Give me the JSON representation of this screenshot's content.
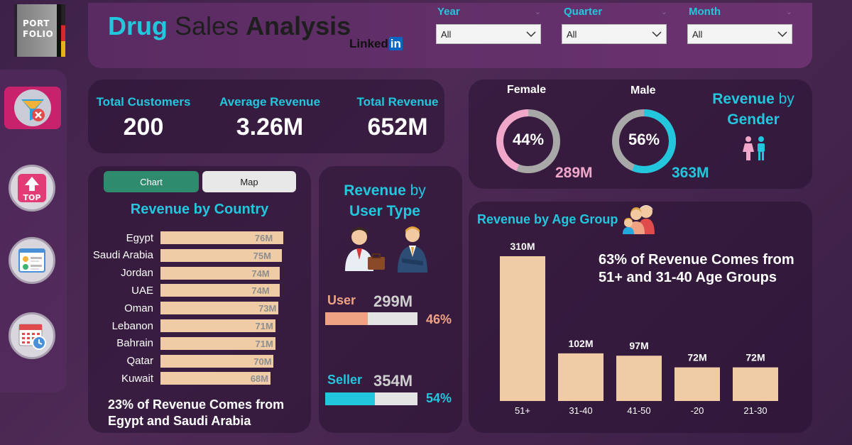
{
  "logo": {
    "line1": "PORT",
    "line2": "FOLIO"
  },
  "header": {
    "title_part1": "Drug",
    "title_part2": " Sales ",
    "title_part3": "Analysis",
    "linkedin_text": "Linked",
    "linkedin_in": "in"
  },
  "filters": [
    {
      "label": "Year",
      "value": "All"
    },
    {
      "label": "Quarter",
      "value": "All"
    },
    {
      "label": "Month",
      "value": "All"
    }
  ],
  "kpis": [
    {
      "label": "Total Customers",
      "value": "200"
    },
    {
      "label": "Average Revenue",
      "value": "3.26M"
    },
    {
      "label": "Total Revenue",
      "value": "652M"
    }
  ],
  "gender": {
    "title_word1": "Revenue",
    "title_word2": " by",
    "title_word3": "Gender",
    "female": {
      "label": "Female",
      "pct": "44%",
      "pct_value": 44,
      "revenue": "289M",
      "color": "#f0a7c9"
    },
    "male": {
      "label": "Male",
      "pct": "56%",
      "pct_value": 56,
      "revenue": "363M",
      "color": "#22c7dd"
    }
  },
  "country": {
    "toggle_chart": "Chart",
    "toggle_map": "Map",
    "title": "Revenue by Country",
    "note_line1": "23% of Revenue Comes from",
    "note_line2": "Egypt and Saudi Arabia",
    "chart_data": {
      "type": "bar",
      "orientation": "horizontal",
      "categories": [
        "Egypt",
        "Saudi Arabia",
        "Jordan",
        "UAE",
        "Oman",
        "Lebanon",
        "Bahrain",
        "Qatar",
        "Kuwait"
      ],
      "values": [
        76,
        75,
        74,
        74,
        73,
        71,
        71,
        70,
        68
      ],
      "labels": [
        "76M",
        "75M",
        "74M",
        "74M",
        "73M",
        "71M",
        "71M",
        "70M",
        "68M"
      ],
      "title": "Revenue by Country"
    }
  },
  "user_type": {
    "title_word1": "Revenue",
    "title_word2": " by",
    "title_word3": "User Type",
    "user": {
      "label": "User",
      "value": "299M",
      "pct": "46%",
      "pct_value": 46,
      "color": "#f0a383"
    },
    "seller": {
      "label": "Seller",
      "value": "354M",
      "pct": "54%",
      "pct_value": 54,
      "color": "#22c7dd"
    }
  },
  "age": {
    "title": "Revenue by Age Group",
    "note_line1": "63% of Revenue Comes from",
    "note_line2": "51+ and 31-40 Age Groups",
    "chart_data": {
      "type": "bar",
      "categories": [
        "51+",
        "31-40",
        "41-50",
        "-20",
        "21-30"
      ],
      "values": [
        310,
        102,
        97,
        72,
        72
      ],
      "labels": [
        "310M",
        "102M",
        "97M",
        "72M",
        "72M"
      ],
      "title": "Revenue by Age Group"
    }
  },
  "colors": {
    "accent": "#22c7dd",
    "bar": "#efcca6",
    "female": "#f0a7c9",
    "user": "#f0a383"
  },
  "sidebar_icons": [
    "filter-clear-icon",
    "top-arrow-icon",
    "profile-list-icon",
    "calendar-clock-icon"
  ],
  "sidebar_top_label": "TOP"
}
